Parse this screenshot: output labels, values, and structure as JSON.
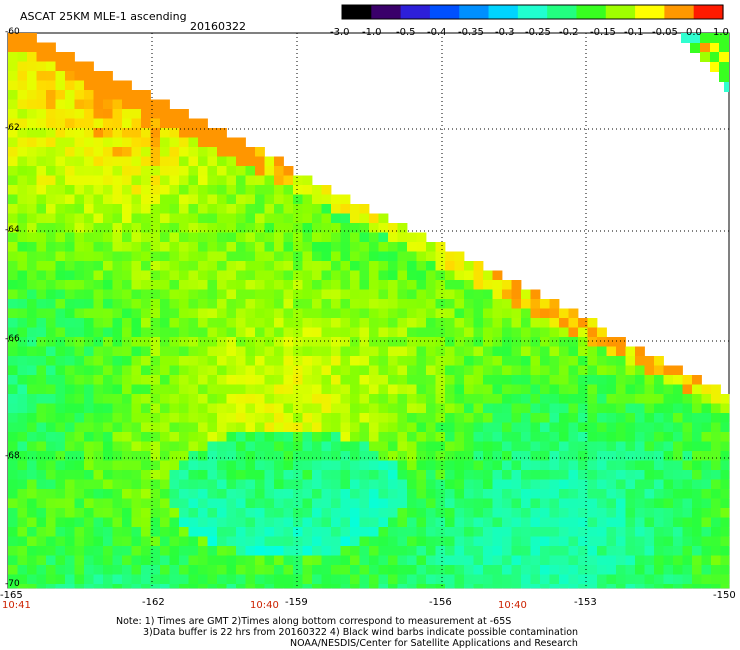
{
  "title": "ASCAT 25KM MLE-1 ascending",
  "date": "20160322",
  "colorbar": {
    "labels": [
      "-3.0",
      "-1.0",
      "-0.5",
      "-0.4",
      "-0.35",
      "-0.3",
      "-0.25",
      "-0.2",
      "-0.15",
      "-0.1",
      "-0.05",
      "0.0",
      "1.0"
    ],
    "colors": [
      "#000000",
      "#3a006a",
      "#2d1fd9",
      "#0050ff",
      "#0090ff",
      "#00d4ff",
      "#20ffd0",
      "#22ff80",
      "#38ff20",
      "#a0ff00",
      "#ffff00",
      "#ff9800",
      "#ff1a00"
    ]
  },
  "axes": {
    "lat_labels": [
      "-60",
      "-62",
      "-64",
      "-66",
      "-68",
      "-70"
    ],
    "lon_labels": [
      "-165",
      "-162",
      "-159",
      "-156",
      "-153",
      "-150"
    ]
  },
  "times": [
    "10:41",
    "10:40",
    "10:40"
  ],
  "notes": [
    "Note: 1) Times are GMT 2)Times along bottom correspond to measurement at -65S",
    "3)Data buffer is 22 hrs from 20160322 4) Black wind barbs indicate possible contamination",
    "NOAA/NESDIS/Center for Satellite Applications and Research"
  ]
}
